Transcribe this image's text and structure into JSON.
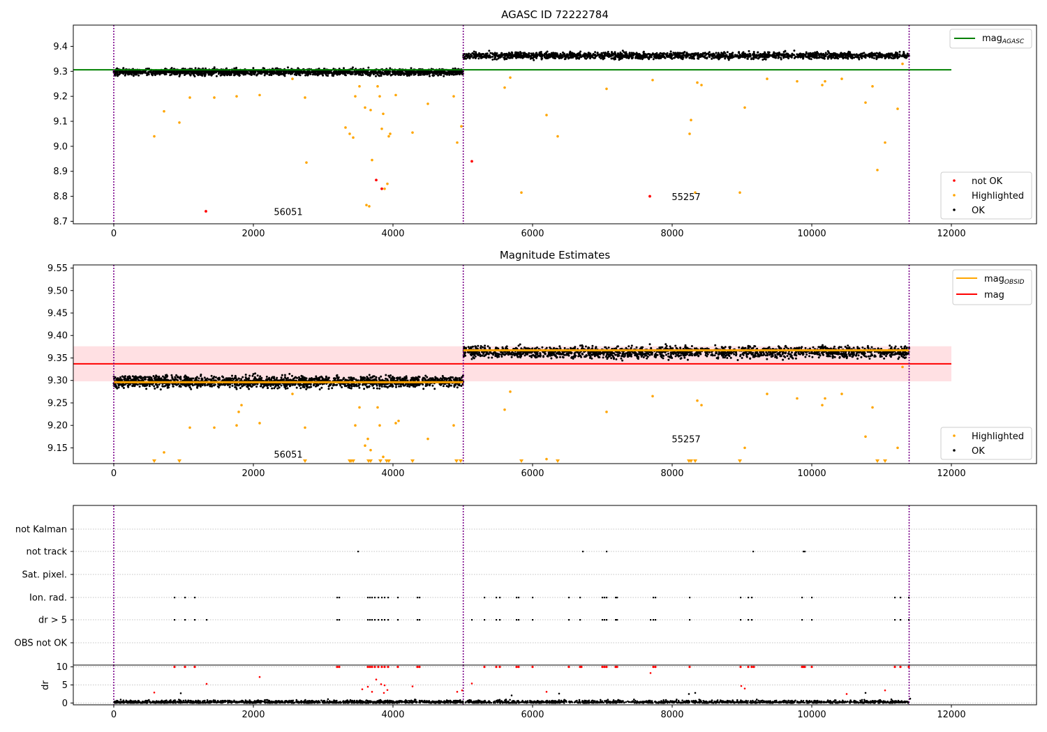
{
  "chart_data": [
    {
      "type": "scatter",
      "title": "AGASC ID 72222784",
      "xlim": [
        -580,
        13220
      ],
      "ylim": [
        8.69,
        9.485
      ],
      "xticks": [
        0,
        2000,
        4000,
        6000,
        8000,
        10000,
        12000
      ],
      "yticks": [
        8.7,
        8.8,
        8.9,
        9.0,
        9.1,
        9.2,
        9.3,
        9.4
      ],
      "ytick_labels": [
        "8.7",
        "8.8",
        "8.9",
        "9.0",
        "9.1",
        "9.2",
        "9.3",
        "9.4"
      ],
      "obsid_boundaries": [
        0,
        5007,
        11395
      ],
      "obsid_labels": [
        {
          "text": "56051",
          "x": 2500,
          "y": 8.725
        },
        {
          "text": "55257",
          "x": 8200,
          "y": 8.785
        }
      ],
      "bands": [
        {
          "x0": 0,
          "x1": 5007,
          "center": 9.297,
          "amp": 0.013
        },
        {
          "x0": 5007,
          "x1": 11395,
          "center": 9.363,
          "amp": 0.013
        }
      ],
      "lines": [
        {
          "name": "mag_AGASC",
          "color": "#008000",
          "x": [
            -580,
            12000
          ],
          "y": [
            9.306,
            9.306
          ]
        }
      ],
      "highlighted": [
        [
          580,
          9.04
        ],
        [
          720,
          9.14
        ],
        [
          940,
          9.095
        ],
        [
          1090,
          9.195
        ],
        [
          1440,
          9.195
        ],
        [
          1760,
          9.2
        ],
        [
          2090,
          9.205
        ],
        [
          2560,
          9.27
        ],
        [
          2740,
          9.195
        ],
        [
          2760,
          8.935
        ],
        [
          3320,
          9.075
        ],
        [
          3380,
          9.05
        ],
        [
          3430,
          9.035
        ],
        [
          3460,
          9.2
        ],
        [
          3520,
          9.24
        ],
        [
          3600,
          9.155
        ],
        [
          3620,
          8.765
        ],
        [
          3660,
          8.76
        ],
        [
          3680,
          9.145
        ],
        [
          3700,
          8.945
        ],
        [
          3780,
          9.24
        ],
        [
          3810,
          9.2
        ],
        [
          3840,
          9.07
        ],
        [
          3860,
          9.13
        ],
        [
          3880,
          8.83
        ],
        [
          3920,
          8.85
        ],
        [
          3940,
          9.04
        ],
        [
          3960,
          9.05
        ],
        [
          4040,
          9.205
        ],
        [
          4280,
          9.055
        ],
        [
          4500,
          9.17
        ],
        [
          4870,
          9.2
        ],
        [
          4920,
          9.015
        ],
        [
          4980,
          9.08
        ],
        [
          5600,
          9.235
        ],
        [
          5680,
          9.275
        ],
        [
          5840,
          8.815
        ],
        [
          6200,
          9.125
        ],
        [
          6360,
          9.04
        ],
        [
          7060,
          9.23
        ],
        [
          7720,
          9.265
        ],
        [
          8250,
          9.05
        ],
        [
          8270,
          9.105
        ],
        [
          8330,
          8.815
        ],
        [
          8360,
          9.255
        ],
        [
          8420,
          9.245
        ],
        [
          8970,
          8.815
        ],
        [
          9040,
          9.155
        ],
        [
          9360,
          9.27
        ],
        [
          9790,
          9.26
        ],
        [
          10150,
          9.245
        ],
        [
          10190,
          9.26
        ],
        [
          10430,
          9.27
        ],
        [
          10770,
          9.175
        ],
        [
          10870,
          9.24
        ],
        [
          10940,
          8.905
        ],
        [
          11050,
          9.015
        ],
        [
          11230,
          9.15
        ],
        [
          11300,
          9.33
        ]
      ],
      "not_ok": [
        [
          1320,
          8.74
        ],
        [
          3760,
          8.865
        ],
        [
          3840,
          8.83
        ],
        [
          5130,
          8.94
        ],
        [
          7680,
          8.8
        ]
      ],
      "legend": {
        "line_label": "mag_AGASC",
        "line_main": "mag",
        "line_sub": "AGASC",
        "entries": [
          "not OK",
          "Highlighted",
          "OK"
        ]
      }
    },
    {
      "type": "scatter",
      "title": "Magnitude Estimates",
      "xlim": [
        -580,
        13220
      ],
      "ylim": [
        9.115,
        9.557
      ],
      "xticks": [
        0,
        2000,
        4000,
        6000,
        8000,
        10000,
        12000
      ],
      "yticks": [
        9.15,
        9.2,
        9.25,
        9.3,
        9.35,
        9.4,
        9.45,
        9.5,
        9.55
      ],
      "ytick_labels": [
        "9.15",
        "9.20",
        "9.25",
        "9.30",
        "9.35",
        "9.40",
        "9.45",
        "9.50",
        "9.55"
      ],
      "obsid_boundaries": [
        0,
        5007,
        11395
      ],
      "obsid_labels": [
        {
          "text": "56051",
          "x": 2500,
          "y": 9.128
        },
        {
          "text": "55257",
          "x": 8200,
          "y": 9.162
        }
      ],
      "bands": [
        {
          "x0": 0,
          "x1": 5007,
          "center": 9.297,
          "amp": 0.013
        },
        {
          "x0": 5007,
          "x1": 11395,
          "center": 9.363,
          "amp": 0.013
        }
      ],
      "mag_range_band": {
        "x0": -580,
        "x1": 12000,
        "y0": 9.298,
        "y1": 9.376,
        "color": "#ffdde0"
      },
      "lines": [
        {
          "name": "mag_OBSID",
          "color": "#ffa500",
          "segments": [
            [
              0,
              5007,
              9.296
            ],
            [
              5007,
              11395,
              9.367
            ]
          ]
        },
        {
          "name": "mag",
          "color": "#ff0000",
          "x": [
            -580,
            12000
          ],
          "y": [
            9.337,
            9.337
          ]
        }
      ],
      "highlighted": [
        [
          720,
          9.14
        ],
        [
          1090,
          9.195
        ],
        [
          1440,
          9.195
        ],
        [
          1760,
          9.2
        ],
        [
          1790,
          9.23
        ],
        [
          1830,
          9.245
        ],
        [
          2090,
          9.205
        ],
        [
          2560,
          9.27
        ],
        [
          2740,
          9.195
        ],
        [
          3460,
          9.2
        ],
        [
          3520,
          9.24
        ],
        [
          3600,
          9.155
        ],
        [
          3640,
          9.17
        ],
        [
          3680,
          9.145
        ],
        [
          3780,
          9.24
        ],
        [
          3810,
          9.2
        ],
        [
          3860,
          9.13
        ],
        [
          4040,
          9.205
        ],
        [
          4080,
          9.21
        ],
        [
          4500,
          9.17
        ],
        [
          4870,
          9.2
        ],
        [
          5600,
          9.235
        ],
        [
          5680,
          9.275
        ],
        [
          6200,
          9.125
        ],
        [
          7060,
          9.23
        ],
        [
          7720,
          9.265
        ],
        [
          8360,
          9.255
        ],
        [
          8420,
          9.245
        ],
        [
          9040,
          9.15
        ],
        [
          9360,
          9.27
        ],
        [
          9790,
          9.26
        ],
        [
          10150,
          9.245
        ],
        [
          10190,
          9.26
        ],
        [
          10430,
          9.27
        ],
        [
          10770,
          9.175
        ],
        [
          10870,
          9.24
        ],
        [
          11230,
          9.15
        ],
        [
          11300,
          9.33
        ]
      ],
      "clipped_x": [
        580,
        940,
        2740,
        3380,
        3400,
        3430,
        3650,
        3680,
        3820,
        3910,
        3940,
        4280,
        4910,
        4970,
        5840,
        6360,
        8240,
        8270,
        8330,
        8970,
        10940,
        11050
      ],
      "legend": {
        "line_entries": [
          {
            "label": "mag_OBSID",
            "main": "mag",
            "sub": "OBSID",
            "color": "#ffa500"
          },
          {
            "label": "mag",
            "main": "mag",
            "sub": "",
            "color": "#ff0000"
          }
        ],
        "entries": [
          "Highlighted",
          "OK"
        ]
      }
    },
    {
      "type": "scatter",
      "title": "",
      "xlim": [
        -580,
        13220
      ],
      "categories": [
        "not Kalman",
        "not track",
        "Sat. pixel.",
        "Ion. rad.",
        "dr > 5",
        "OBS not OK"
      ],
      "obsid_boundaries": [
        0,
        5007,
        11395
      ],
      "flags": {
        "not Kalman": [],
        "not track": [
          3500,
          6720,
          7060,
          9160,
          9880,
          9900
        ],
        "Sat. pixel.": [],
        "Ion. rad.": [
          870,
          1020,
          1160,
          3200,
          3230,
          3640,
          3670,
          3700,
          3740,
          3790,
          3840,
          3880,
          3930,
          4070,
          4350,
          4380,
          5310,
          5480,
          5530,
          5770,
          5800,
          6000,
          6520,
          6680,
          7000,
          7030,
          7060,
          7190,
          7210,
          7730,
          7760,
          8250,
          8980,
          9090,
          9140,
          9860,
          10000,
          11190,
          11270,
          11390
        ],
        "dr > 5": [
          870,
          1020,
          1160,
          1330,
          3200,
          3230,
          3640,
          3670,
          3700,
          3740,
          3790,
          3840,
          3880,
          3930,
          4070,
          4350,
          4380,
          5130,
          5310,
          5480,
          5530,
          5770,
          5800,
          6000,
          6520,
          6680,
          7000,
          7030,
          7060,
          7190,
          7210,
          7690,
          7730,
          7760,
          8250,
          8980,
          9090,
          9140,
          9860,
          10000,
          11190,
          11270,
          11390
        ],
        "OBS not OK": []
      }
    },
    {
      "type": "scatter",
      "title": "",
      "ylabel": "dr",
      "xlim": [
        -580,
        13220
      ],
      "ylim": [
        -0.5,
        10.5
      ],
      "xticks": [
        0,
        2000,
        4000,
        6000,
        8000,
        10000,
        12000
      ],
      "yticks": [
        0,
        5,
        10
      ],
      "ytick_labels": [
        "0",
        "5",
        "10"
      ],
      "obsid_boundaries": [
        0,
        5007,
        11395
      ],
      "dr_clipped_x": [
        870,
        1020,
        1160,
        3200,
        3230,
        3640,
        3670,
        3700,
        3740,
        3790,
        3840,
        3880,
        3930,
        4070,
        4350,
        4380,
        5310,
        5480,
        5530,
        5770,
        5800,
        6000,
        6520,
        6680,
        6700,
        7000,
        7030,
        7060,
        7190,
        7210,
        7730,
        7760,
        8250,
        8980,
        9090,
        9140,
        9170,
        9860,
        9880,
        9900,
        10000,
        11190,
        11270,
        11390
      ],
      "dr_outliers_red": [
        [
          580,
          2.9
        ],
        [
          1330,
          5.3
        ],
        [
          2090,
          7.2
        ],
        [
          3560,
          3.8
        ],
        [
          3640,
          4.5
        ],
        [
          3700,
          3.1
        ],
        [
          3760,
          6.5
        ],
        [
          3830,
          5.2
        ],
        [
          3870,
          2.8
        ],
        [
          3880,
          4.9
        ],
        [
          3920,
          3.6
        ],
        [
          4280,
          4.6
        ],
        [
          4920,
          3.1
        ],
        [
          4990,
          3.5
        ],
        [
          5130,
          5.4
        ],
        [
          6200,
          3.1
        ],
        [
          7690,
          8.3
        ],
        [
          8990,
          4.7
        ],
        [
          9040,
          4.0
        ],
        [
          10500,
          2.5
        ],
        [
          11050,
          3.5
        ]
      ],
      "dr_outliers_black": [
        [
          960,
          2.7
        ],
        [
          5700,
          2.1
        ],
        [
          6380,
          2.6
        ],
        [
          8240,
          2.5
        ],
        [
          8330,
          2.8
        ],
        [
          10770,
          2.8
        ],
        [
          11410,
          1.2
        ]
      ]
    }
  ]
}
